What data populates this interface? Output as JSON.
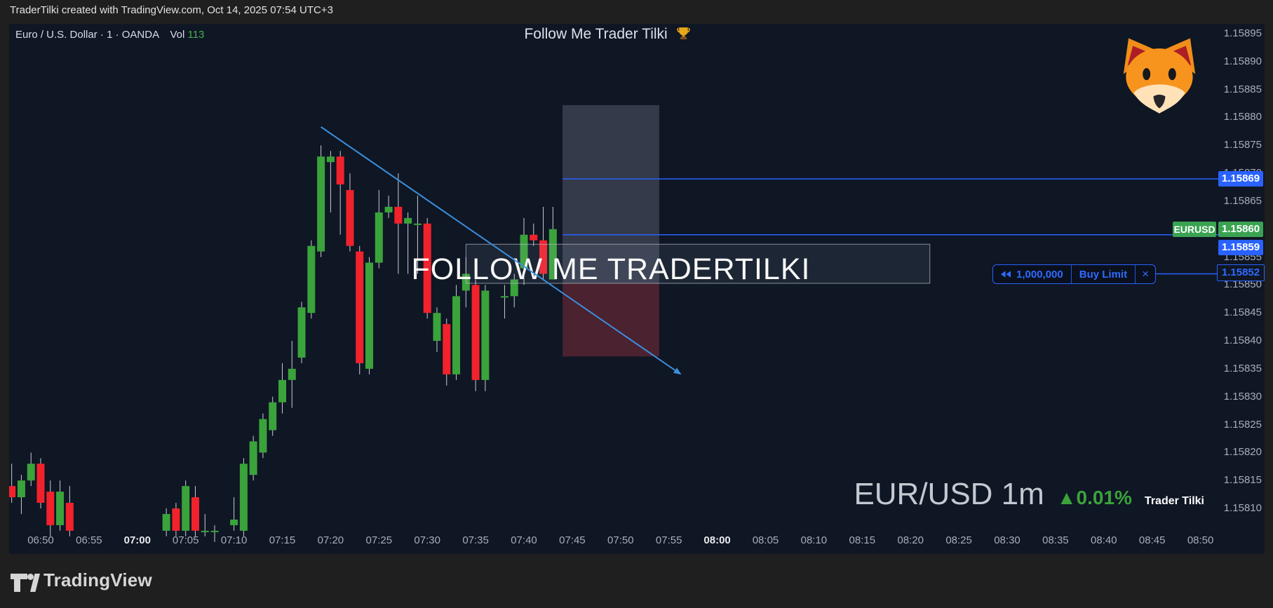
{
  "attribution_bar": {
    "text": "TraderTilki created with TradingView.com, Oct 14, 2025 07:54 UTC+3"
  },
  "legend": {
    "symbol_title": "Euro / U.S. Dollar",
    "separator": "·",
    "interval": "1",
    "exchange": "OANDA",
    "volume_label": "Vol",
    "volume_value": "113"
  },
  "banner": {
    "title": "Follow Me Trader Tilki",
    "trophy_icon": "trophy-icon",
    "fox_icon": "fox-face-icon"
  },
  "watermark": {
    "center_text": "FOLLOW ME TRADERTILKI"
  },
  "symbol_watermark": {
    "symbol": "EUR/USD 1m",
    "change": "▲0.01%",
    "signature": "Trader Tilki"
  },
  "order_widget": {
    "reverse_icon": "double-left-arrow-icon",
    "quantity": "1,000,000",
    "type": "Buy Limit",
    "close": "×",
    "price": "1.15852"
  },
  "price_scale": {
    "ticks": [
      "1.15895",
      "1.15890",
      "1.15885",
      "1.15880",
      "1.15875",
      "1.15870",
      "1.15865",
      "1.15860",
      "1.15855",
      "1.15850",
      "1.15845",
      "1.15840",
      "1.15835",
      "1.15830",
      "1.15825",
      "1.15820",
      "1.15815",
      "1.15810"
    ],
    "upper_level_label": "1.15869",
    "symbol_tag": "EURUSD",
    "last_price_label": "1.15860",
    "lower_level_label": "1.15859",
    "order_price_label": "1.15852"
  },
  "time_scale": {
    "ticks": [
      {
        "label": "06:50",
        "bold": false
      },
      {
        "label": "06:55",
        "bold": false
      },
      {
        "label": "07:00",
        "bold": true
      },
      {
        "label": "07:05",
        "bold": false
      },
      {
        "label": "07:10",
        "bold": false
      },
      {
        "label": "07:15",
        "bold": false
      },
      {
        "label": "07:20",
        "bold": false
      },
      {
        "label": "07:25",
        "bold": false
      },
      {
        "label": "07:30",
        "bold": false
      },
      {
        "label": "07:35",
        "bold": false
      },
      {
        "label": "07:40",
        "bold": false
      },
      {
        "label": "07:45",
        "bold": false
      },
      {
        "label": "07:50",
        "bold": false
      },
      {
        "label": "07:55",
        "bold": false
      },
      {
        "label": "08:00",
        "bold": true
      },
      {
        "label": "08:05",
        "bold": false
      },
      {
        "label": "08:10",
        "bold": false
      },
      {
        "label": "08:15",
        "bold": false
      },
      {
        "label": "08:20",
        "bold": false
      },
      {
        "label": "08:25",
        "bold": false
      },
      {
        "label": "08:30",
        "bold": false
      },
      {
        "label": "08:35",
        "bold": false
      },
      {
        "label": "08:40",
        "bold": false
      },
      {
        "label": "08:45",
        "bold": false
      },
      {
        "label": "08:50",
        "bold": false
      }
    ]
  },
  "footer": {
    "brand": "TradingView",
    "logo_icon": "tradingview-logo"
  },
  "colors": {
    "panel_background": "#0f1624",
    "frame": "#1f1f1f",
    "up": "#3aa33b",
    "down": "#f1222c",
    "wick": "#c9cdd7",
    "order_blue": "#2962ff",
    "trendline_blue": "#3a8fdd",
    "label_green": "#3aa352",
    "axis_text": "#a8adba",
    "target_zone_fill": "rgba(163,166,188,0.25)",
    "stop_zone_fill": "rgba(198,60,72,0.33)",
    "range_box_fill": "rgba(180,195,225,0.09)",
    "range_box_border": "rgba(185,190,205,0.7)"
  },
  "chart_data": {
    "type": "candlestick",
    "title": "Euro / U.S. Dollar",
    "symbol": "EURUSD",
    "exchange": "OANDA",
    "interval_minutes": 1,
    "volume": 113,
    "last_price": 1.1586,
    "change_percent": 0.01,
    "grid": false,
    "price_axis": {
      "min": 1.1581,
      "max": 1.15895,
      "step": 5e-05
    },
    "time_axis": {
      "start": "06:50",
      "end": "08:50",
      "label_step_minutes": 5,
      "bold_labels": [
        "07:00",
        "08:00"
      ]
    },
    "candles": [
      {
        "t": "06:47",
        "o": 1.15814,
        "h": 1.15818,
        "l": 1.15811,
        "c": 1.15812
      },
      {
        "t": "06:48",
        "o": 1.15812,
        "h": 1.15816,
        "l": 1.15809,
        "c": 1.15815
      },
      {
        "t": "06:49",
        "o": 1.15815,
        "h": 1.1582,
        "l": 1.15814,
        "c": 1.15818
      },
      {
        "t": "06:50",
        "o": 1.15818,
        "h": 1.15819,
        "l": 1.1581,
        "c": 1.15811
      },
      {
        "t": "06:51",
        "o": 1.15813,
        "h": 1.15815,
        "l": 1.15805,
        "c": 1.15807
      },
      {
        "t": "06:52",
        "o": 1.15807,
        "h": 1.15815,
        "l": 1.15806,
        "c": 1.15813
      },
      {
        "t": "06:53",
        "o": 1.15811,
        "h": 1.15814,
        "l": 1.15805,
        "c": 1.15806
      },
      {
        "t": "07:03",
        "o": 1.15806,
        "h": 1.1581,
        "l": 1.15805,
        "c": 1.15809
      },
      {
        "t": "07:04",
        "o": 1.1581,
        "h": 1.15811,
        "l": 1.15805,
        "c": 1.15806
      },
      {
        "t": "07:05",
        "o": 1.15806,
        "h": 1.15815,
        "l": 1.15805,
        "c": 1.15814
      },
      {
        "t": "07:06",
        "o": 1.15812,
        "h": 1.15814,
        "l": 1.15805,
        "c": 1.15806
      },
      {
        "t": "07:07",
        "o": 1.15806,
        "h": 1.15809,
        "l": 1.15805,
        "c": 1.15806
      },
      {
        "t": "07:08",
        "o": 1.15806,
        "h": 1.15807,
        "l": 1.15804,
        "c": 1.15806
      },
      {
        "t": "07:10",
        "o": 1.15807,
        "h": 1.15812,
        "l": 1.15806,
        "c": 1.15808
      },
      {
        "t": "07:11",
        "o": 1.15806,
        "h": 1.15819,
        "l": 1.15805,
        "c": 1.15818
      },
      {
        "t": "07:12",
        "o": 1.15816,
        "h": 1.15823,
        "l": 1.15815,
        "c": 1.15822
      },
      {
        "t": "07:13",
        "o": 1.1582,
        "h": 1.15827,
        "l": 1.15819,
        "c": 1.15826
      },
      {
        "t": "07:14",
        "o": 1.15824,
        "h": 1.1583,
        "l": 1.15823,
        "c": 1.15829
      },
      {
        "t": "07:15",
        "o": 1.15829,
        "h": 1.15836,
        "l": 1.15827,
        "c": 1.15833
      },
      {
        "t": "07:16",
        "o": 1.15833,
        "h": 1.1584,
        "l": 1.15828,
        "c": 1.15835
      },
      {
        "t": "07:17",
        "o": 1.15837,
        "h": 1.15847,
        "l": 1.15836,
        "c": 1.15846
      },
      {
        "t": "07:18",
        "o": 1.15845,
        "h": 1.15858,
        "l": 1.15844,
        "c": 1.15857
      },
      {
        "t": "07:19",
        "o": 1.15856,
        "h": 1.15875,
        "l": 1.15855,
        "c": 1.15873
      },
      {
        "t": "07:20",
        "o": 1.15872,
        "h": 1.15874,
        "l": 1.15863,
        "c": 1.15873
      },
      {
        "t": "07:21",
        "o": 1.15873,
        "h": 1.15874,
        "l": 1.15859,
        "c": 1.15868
      },
      {
        "t": "07:22",
        "o": 1.15867,
        "h": 1.1587,
        "l": 1.15856,
        "c": 1.15857
      },
      {
        "t": "07:23",
        "o": 1.15856,
        "h": 1.15857,
        "l": 1.15834,
        "c": 1.15836
      },
      {
        "t": "07:24",
        "o": 1.15835,
        "h": 1.15855,
        "l": 1.15834,
        "c": 1.15854
      },
      {
        "t": "07:25",
        "o": 1.15854,
        "h": 1.15867,
        "l": 1.15853,
        "c": 1.15863
      },
      {
        "t": "07:26",
        "o": 1.15863,
        "h": 1.15866,
        "l": 1.15862,
        "c": 1.15864
      },
      {
        "t": "07:27",
        "o": 1.15864,
        "h": 1.1587,
        "l": 1.15852,
        "c": 1.15861
      },
      {
        "t": "07:28",
        "o": 1.15861,
        "h": 1.15863,
        "l": 1.15852,
        "c": 1.15862
      },
      {
        "t": "07:29",
        "o": 1.15861,
        "h": 1.15866,
        "l": 1.15852,
        "c": 1.15861
      },
      {
        "t": "07:30",
        "o": 1.15861,
        "h": 1.15862,
        "l": 1.15844,
        "c": 1.15845
      },
      {
        "t": "07:31",
        "o": 1.1584,
        "h": 1.15846,
        "l": 1.15838,
        "c": 1.15845
      },
      {
        "t": "07:32",
        "o": 1.15843,
        "h": 1.15844,
        "l": 1.15832,
        "c": 1.15834
      },
      {
        "t": "07:33",
        "o": 1.15834,
        "h": 1.1585,
        "l": 1.15833,
        "c": 1.15848
      },
      {
        "t": "07:34",
        "o": 1.15849,
        "h": 1.15855,
        "l": 1.15846,
        "c": 1.15852
      },
      {
        "t": "07:35",
        "o": 1.1585,
        "h": 1.15851,
        "l": 1.15831,
        "c": 1.15833
      },
      {
        "t": "07:36",
        "o": 1.15833,
        "h": 1.1585,
        "l": 1.15831,
        "c": 1.15849
      },
      {
        "t": "07:38",
        "o": 1.15848,
        "h": 1.1585,
        "l": 1.15844,
        "c": 1.15848
      },
      {
        "t": "07:39",
        "o": 1.15848,
        "h": 1.15852,
        "l": 1.15846,
        "c": 1.15851
      },
      {
        "t": "07:40",
        "o": 1.15853,
        "h": 1.15862,
        "l": 1.1585,
        "c": 1.15859
      },
      {
        "t": "07:41",
        "o": 1.15859,
        "h": 1.15861,
        "l": 1.15857,
        "c": 1.15858
      },
      {
        "t": "07:42",
        "o": 1.15858,
        "h": 1.15864,
        "l": 1.15851,
        "c": 1.15852
      },
      {
        "t": "07:43",
        "o": 1.15851,
        "h": 1.15864,
        "l": 1.15851,
        "c": 1.1586
      }
    ],
    "annotations": {
      "horizontal_levels": [
        {
          "price": 1.15869
        },
        {
          "price": 1.15859
        }
      ],
      "pending_order": {
        "side": "Buy Limit",
        "quantity": 1000000,
        "price": 1.15852
      },
      "long_position_box": {
        "time_from": "07:44",
        "time_to": "07:54",
        "target_price": 1.158822,
        "entry_price": 1.158503,
        "stop_price": 1.158372
      },
      "range_box": {
        "time_from": "07:34",
        "time_to": "08:22",
        "price_top": 1.158573,
        "price_bottom": 1.158503
      },
      "trendline": {
        "time_from": "07:19",
        "price_from": 1.158783,
        "time_to": "07:56",
        "price_to": 1.158343
      }
    }
  }
}
